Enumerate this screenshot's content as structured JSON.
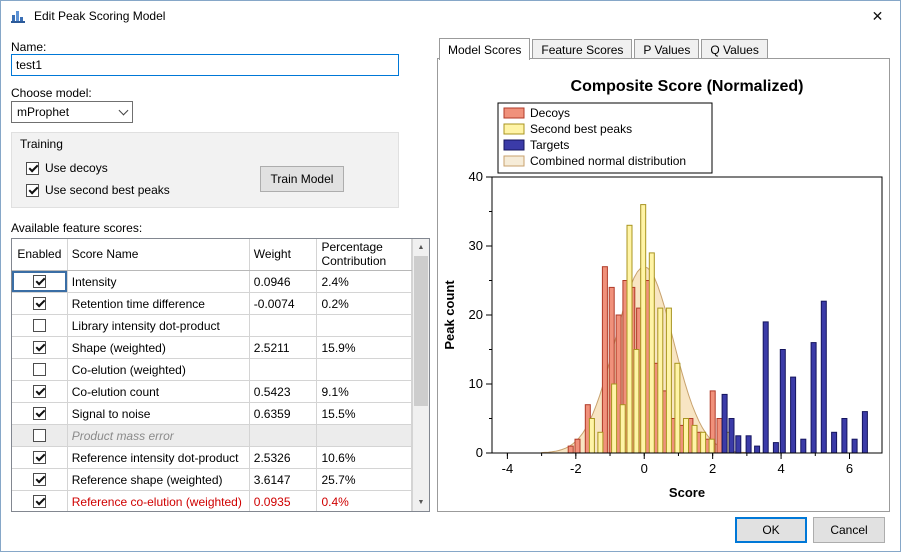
{
  "window": {
    "title": "Edit Peak Scoring Model",
    "close_glyph": "✕"
  },
  "icons": {
    "scroll_up": "▲",
    "scroll_down": "▼"
  },
  "left": {
    "name_label": "Name:",
    "name_value": "test1",
    "model_label": "Choose model:",
    "model_value": "mProphet",
    "training": {
      "label": "Training",
      "use_decoys_label": "Use decoys",
      "use_decoys_checked": true,
      "use_second_best_label": "Use second best peaks",
      "use_second_best_checked": true,
      "train_button": "Train Model"
    },
    "feature_scores_label": "Available feature scores:",
    "table": {
      "headers": [
        "Enabled",
        "Score Name",
        "Weight",
        "Percentage Contribution"
      ],
      "rows": [
        {
          "enabled": true,
          "name": "Intensity",
          "weight": "0.0946",
          "pct": "2.4%",
          "current": true
        },
        {
          "enabled": true,
          "name": "Retention time difference",
          "weight": "-0.0074",
          "pct": "0.2%"
        },
        {
          "enabled": false,
          "name": "Library intensity dot-product",
          "weight": "",
          "pct": ""
        },
        {
          "enabled": true,
          "name": "Shape (weighted)",
          "weight": "2.5211",
          "pct": "15.9%"
        },
        {
          "enabled": false,
          "name": "Co-elution (weighted)",
          "weight": "",
          "pct": ""
        },
        {
          "enabled": true,
          "name": "Co-elution count",
          "weight": "0.5423",
          "pct": "9.1%"
        },
        {
          "enabled": true,
          "name": "Signal to noise",
          "weight": "0.6359",
          "pct": "15.5%"
        },
        {
          "enabled": false,
          "name": "Product mass error",
          "weight": "",
          "pct": "",
          "disabled": true
        },
        {
          "enabled": true,
          "name": "Reference intensity dot-product",
          "weight": "2.5326",
          "pct": "10.6%"
        },
        {
          "enabled": true,
          "name": "Reference shape (weighted)",
          "weight": "3.6147",
          "pct": "25.7%"
        },
        {
          "enabled": true,
          "name": "Reference co-elution (weighted)",
          "weight": "0.0935",
          "pct": "0.4%",
          "red": true
        }
      ]
    }
  },
  "right": {
    "tabs": [
      "Model Scores",
      "Feature Scores",
      "P Values",
      "Q Values"
    ],
    "active_tab": "Model Scores"
  },
  "chart_data": {
    "type": "bar",
    "title": "Composite Score (Normalized)",
    "xlabel": "Score",
    "ylabel": "Peak count",
    "xlim": [
      -4.45,
      6.95
    ],
    "ylim": [
      0,
      40
    ],
    "xticks": [
      -4,
      -2,
      0,
      2,
      4,
      6
    ],
    "yticks": [
      0,
      10,
      20,
      30,
      40
    ],
    "legend_position": "top-left-inside",
    "grid": false,
    "legend": [
      {
        "label": "Decoys",
        "fill": "#F0917B",
        "stroke": "#B03A28"
      },
      {
        "label": "Second best peaks",
        "fill": "#FFF4A6",
        "stroke": "#A89420"
      },
      {
        "label": "Targets",
        "fill": "#3B3BA8",
        "stroke": "#15155E"
      },
      {
        "label": "Combined normal distribution",
        "fill": "#F6ECD8",
        "stroke": "#C8A26E"
      }
    ],
    "series": [
      {
        "name": "Decoys",
        "fill": "#F0917B",
        "stroke": "#B03A28",
        "bars": [
          [
            -2.15,
            1
          ],
          [
            -1.95,
            2
          ],
          [
            -1.65,
            7
          ],
          [
            -1.15,
            27
          ],
          [
            -0.95,
            24
          ],
          [
            -0.75,
            20
          ],
          [
            -0.55,
            25
          ],
          [
            -0.35,
            24
          ],
          [
            -0.15,
            21
          ],
          [
            0.1,
            25
          ],
          [
            0.35,
            13
          ],
          [
            0.6,
            9
          ],
          [
            0.85,
            5
          ],
          [
            1.1,
            4
          ],
          [
            1.35,
            5
          ],
          [
            1.6,
            3
          ],
          [
            1.85,
            2
          ],
          [
            2.0,
            9
          ],
          [
            2.2,
            5
          ]
        ]
      },
      {
        "name": "Second best peaks",
        "fill": "#FFF4A6",
        "stroke": "#A89420",
        "bars": [
          [
            -1.53,
            5
          ],
          [
            -1.28,
            3
          ],
          [
            -0.88,
            10
          ],
          [
            -0.63,
            7
          ],
          [
            -0.43,
            33
          ],
          [
            -0.23,
            15
          ],
          [
            -0.03,
            36
          ],
          [
            0.22,
            29
          ],
          [
            0.47,
            21
          ],
          [
            0.72,
            21
          ],
          [
            0.97,
            13
          ],
          [
            1.22,
            5
          ],
          [
            1.47,
            4
          ],
          [
            1.72,
            3
          ],
          [
            1.97,
            2
          ],
          [
            2.42,
            3
          ]
        ]
      },
      {
        "name": "Targets",
        "fill": "#3B3BA8",
        "stroke": "#15155E",
        "bars": [
          [
            2.35,
            8.5
          ],
          [
            2.55,
            5
          ],
          [
            2.75,
            2.5
          ],
          [
            3.05,
            2.5
          ],
          [
            3.3,
            1
          ],
          [
            3.55,
            19
          ],
          [
            3.85,
            1.5
          ],
          [
            4.05,
            15
          ],
          [
            4.35,
            11
          ],
          [
            4.65,
            2
          ],
          [
            4.95,
            16
          ],
          [
            5.25,
            22
          ],
          [
            5.55,
            3
          ],
          [
            5.85,
            5
          ],
          [
            6.15,
            2
          ],
          [
            6.45,
            6
          ]
        ]
      }
    ],
    "normal_curve": {
      "mu": 0.0,
      "sigma": 0.85,
      "peak": 27,
      "fill": "rgba(246,222,180,0.8)",
      "stroke": "#C8A26E"
    }
  },
  "footer": {
    "ok": "OK",
    "cancel": "Cancel"
  }
}
